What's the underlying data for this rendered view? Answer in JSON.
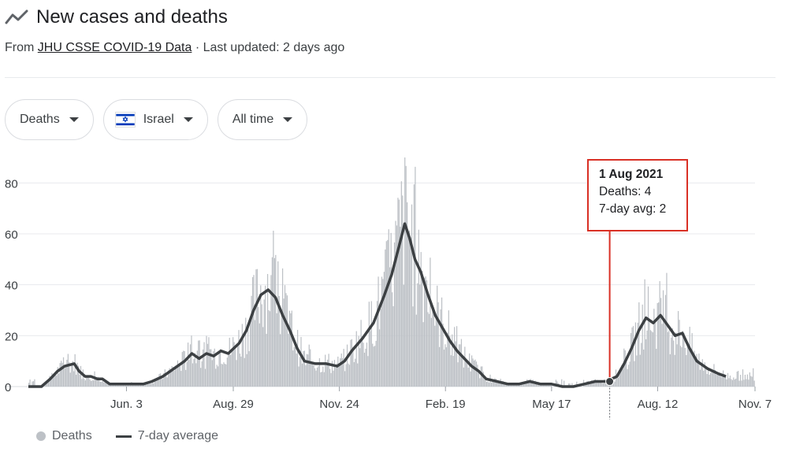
{
  "header": {
    "title": "New cases and deaths",
    "subtitle_prefix": "From ",
    "source_link": "JHU CSSE COVID-19 Data",
    "subtitle_suffix": " · Last updated: 2 days ago"
  },
  "filters": {
    "metric": "Deaths",
    "country": "Israel",
    "range": "All time"
  },
  "tooltip": {
    "date": "1 Aug 2021",
    "deaths_label": "Deaths: 4",
    "avg_label": "7-day avg: 2"
  },
  "legend": {
    "bars_label": "Deaths",
    "line_label": "7-day average"
  },
  "colors": {
    "bar": "#bdc1c6",
    "line": "#3c4043",
    "grid": "#e8eaed",
    "highlight": "#d93025"
  },
  "chart_data": {
    "type": "bar",
    "ylim": [
      0,
      90
    ],
    "yticks": [
      0,
      20,
      40,
      60,
      80
    ],
    "xticks": [
      "Jun. 3",
      "Aug. 29",
      "Nov. 24",
      "Feb. 19",
      "May 17",
      "Aug. 12",
      "Nov. 7"
    ],
    "xtick_positions": [
      0.135,
      0.282,
      0.428,
      0.574,
      0.72,
      0.866,
      1.0
    ],
    "series": [
      {
        "name": "Deaths",
        "type": "bar"
      },
      {
        "name": "7-day average",
        "type": "line",
        "points": [
          [
            0,
            0
          ],
          [
            0.018,
            0
          ],
          [
            0.03,
            3
          ],
          [
            0.04,
            6
          ],
          [
            0.05,
            8
          ],
          [
            0.063,
            9
          ],
          [
            0.07,
            6
          ],
          [
            0.078,
            4
          ],
          [
            0.086,
            4
          ],
          [
            0.095,
            3
          ],
          [
            0.102,
            3
          ],
          [
            0.112,
            1
          ],
          [
            0.125,
            1
          ],
          [
            0.14,
            1
          ],
          [
            0.158,
            1
          ],
          [
            0.17,
            2
          ],
          [
            0.185,
            4
          ],
          [
            0.2,
            7
          ],
          [
            0.215,
            10
          ],
          [
            0.225,
            13
          ],
          [
            0.235,
            11
          ],
          [
            0.245,
            13
          ],
          [
            0.255,
            12
          ],
          [
            0.265,
            14
          ],
          [
            0.275,
            13
          ],
          [
            0.29,
            17
          ],
          [
            0.3,
            22
          ],
          [
            0.31,
            30
          ],
          [
            0.32,
            36
          ],
          [
            0.33,
            38
          ],
          [
            0.34,
            35
          ],
          [
            0.35,
            28
          ],
          [
            0.36,
            22
          ],
          [
            0.37,
            15
          ],
          [
            0.38,
            10
          ],
          [
            0.395,
            9
          ],
          [
            0.41,
            9
          ],
          [
            0.425,
            8
          ],
          [
            0.435,
            10
          ],
          [
            0.445,
            14
          ],
          [
            0.46,
            19
          ],
          [
            0.475,
            25
          ],
          [
            0.49,
            36
          ],
          [
            0.5,
            44
          ],
          [
            0.51,
            55
          ],
          [
            0.518,
            64
          ],
          [
            0.525,
            58
          ],
          [
            0.532,
            50
          ],
          [
            0.54,
            45
          ],
          [
            0.55,
            36
          ],
          [
            0.56,
            28
          ],
          [
            0.57,
            23
          ],
          [
            0.58,
            18
          ],
          [
            0.59,
            14
          ],
          [
            0.6,
            11
          ],
          [
            0.61,
            8
          ],
          [
            0.62,
            6
          ],
          [
            0.63,
            3
          ],
          [
            0.645,
            2
          ],
          [
            0.66,
            1
          ],
          [
            0.675,
            1
          ],
          [
            0.69,
            2
          ],
          [
            0.705,
            1
          ],
          [
            0.72,
            1
          ],
          [
            0.735,
            0
          ],
          [
            0.75,
            0
          ],
          [
            0.765,
            1
          ],
          [
            0.78,
            2
          ],
          [
            0.795,
            2
          ],
          [
            0.81,
            4
          ],
          [
            0.82,
            9
          ],
          [
            0.83,
            15
          ],
          [
            0.84,
            22
          ],
          [
            0.85,
            27
          ],
          [
            0.86,
            25
          ],
          [
            0.87,
            28
          ],
          [
            0.88,
            24
          ],
          [
            0.89,
            20
          ],
          [
            0.9,
            21
          ],
          [
            0.91,
            15
          ],
          [
            0.92,
            10
          ],
          [
            0.935,
            7
          ],
          [
            0.95,
            5
          ],
          [
            0.96,
            4
          ]
        ]
      }
    ],
    "highlight": {
      "x": 0.8,
      "value": 2
    }
  }
}
